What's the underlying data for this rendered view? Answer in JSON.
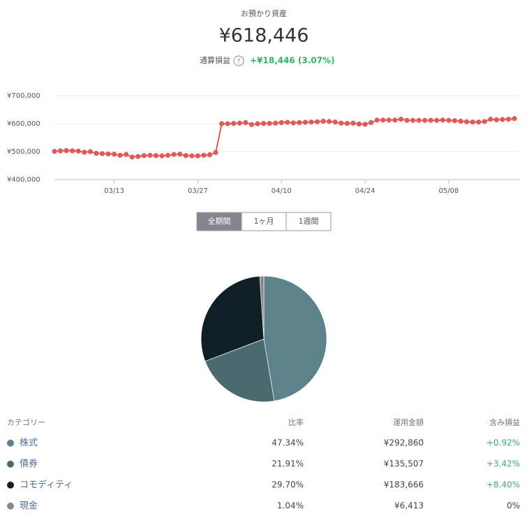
{
  "header": {
    "label": "お預かり資産",
    "total": "¥618,446",
    "pnl_label": "通算損益",
    "pnl": "+¥18,446 (3.07%)"
  },
  "chart_data": [
    {
      "type": "line",
      "x": [
        "03/03",
        "03/04",
        "03/05",
        "03/06",
        "03/07",
        "03/08",
        "03/09",
        "03/10",
        "03/11",
        "03/12",
        "03/13",
        "03/14",
        "03/15",
        "03/16",
        "03/17",
        "03/18",
        "03/19",
        "03/20",
        "03/21",
        "03/22",
        "03/23",
        "03/24",
        "03/25",
        "03/26",
        "03/27",
        "03/28",
        "03/29",
        "03/30",
        "03/31",
        "04/01",
        "04/02",
        "04/03",
        "04/04",
        "04/05",
        "04/06",
        "04/07",
        "04/08",
        "04/09",
        "04/10",
        "04/11",
        "04/12",
        "04/13",
        "04/14",
        "04/15",
        "04/16",
        "04/17",
        "04/18",
        "04/19",
        "04/20",
        "04/21",
        "04/22",
        "04/23",
        "04/24",
        "04/25",
        "04/26",
        "04/27",
        "04/28",
        "04/29",
        "04/30",
        "05/01",
        "05/02",
        "05/03",
        "05/04",
        "05/05",
        "05/06",
        "05/07",
        "05/08",
        "05/09",
        "05/10",
        "05/11",
        "05/12",
        "05/13",
        "05/14",
        "05/15",
        "05/16",
        "05/17",
        "05/18",
        "05/19"
      ],
      "series": [
        {
          "color": "#e05a5a",
          "values": [
            501000,
            503000,
            504000,
            503000,
            502000,
            498000,
            500000,
            494000,
            493000,
            492000,
            491000,
            487000,
            490000,
            481000,
            483000,
            486000,
            487000,
            486000,
            485000,
            487000,
            490000,
            491000,
            486000,
            485000,
            485000,
            487000,
            489000,
            497000,
            600000,
            600000,
            601000,
            602000,
            604000,
            597000,
            600000,
            601000,
            601000,
            602000,
            604000,
            605000,
            603000,
            604000,
            605000,
            606000,
            607000,
            609000,
            608000,
            606000,
            602000,
            601000,
            602000,
            599000,
            598000,
            604000,
            613000,
            613000,
            613000,
            613000,
            616000,
            612000,
            612000,
            612000,
            612000,
            612000,
            612000,
            613000,
            612000,
            611000,
            609000,
            607000,
            606000,
            606000,
            608000,
            616000,
            614000,
            615000,
            616000,
            618446
          ]
        }
      ],
      "ylim": [
        400000,
        700000
      ],
      "yticks": [
        {
          "value": 400000,
          "label": "¥400,000"
        },
        {
          "value": 500000,
          "label": "¥500,000"
        },
        {
          "value": 600000,
          "label": "¥600,000"
        },
        {
          "value": 700000,
          "label": "¥700,000"
        }
      ],
      "xticks": [
        "03/13",
        "03/27",
        "04/10",
        "04/24",
        "05/08"
      ],
      "grid": true
    },
    {
      "type": "pie",
      "categories": [
        "株式",
        "債券",
        "コモディティ",
        "現金"
      ],
      "values": [
        47.34,
        21.91,
        29.7,
        1.04
      ],
      "value_labels": [
        "47.34%",
        "21.91%",
        "29.70%",
        "1.04%"
      ],
      "colors": [
        "#5b8389",
        "#4a6a70",
        "#0f1f25",
        "#8a8591"
      ]
    }
  ],
  "buttons": [
    "全期間",
    "1ヶ月",
    "1週間"
  ],
  "table": {
    "headers": [
      "カテゴリー",
      "比率",
      "運用金額",
      "含み損益"
    ],
    "rows": [
      [
        "¥292,860",
        "+0.92%"
      ],
      [
        "¥135,507",
        "+3.42%"
      ],
      [
        "¥183,666",
        "+8.40%"
      ],
      [
        "¥6,413",
        "0%"
      ]
    ]
  }
}
